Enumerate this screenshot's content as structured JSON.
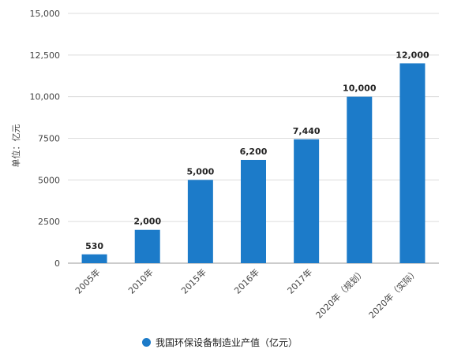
{
  "chart_data": {
    "type": "bar",
    "title": "",
    "ylabel": "单位：亿元",
    "xlabel": "",
    "categories": [
      "2005年",
      "2010年",
      "2015年",
      "2016年",
      "2017年",
      "2020年（规划）",
      "2020年（实际）"
    ],
    "series": [
      {
        "name": "我国环保设备制造业产值（亿元）",
        "values": [
          530,
          2000,
          5000,
          6200,
          7440,
          10000,
          12000
        ]
      }
    ],
    "data_labels": [
      "530",
      "2,000",
      "5,000",
      "6,200",
      "7,440",
      "10,000",
      "12,000"
    ],
    "yticks": [
      0,
      2500,
      5000,
      7500,
      10000,
      12500,
      15000
    ],
    "ytick_labels": [
      "0",
      "2500",
      "5000",
      "7500",
      "10,000",
      "12,500",
      "15,000"
    ],
    "ylim": [
      0,
      15000
    ],
    "grid": true,
    "legend_position": "bottom",
    "color": "#1c7bc9"
  },
  "legend": {
    "label": "我国环保设备制造业产值（亿元）"
  }
}
